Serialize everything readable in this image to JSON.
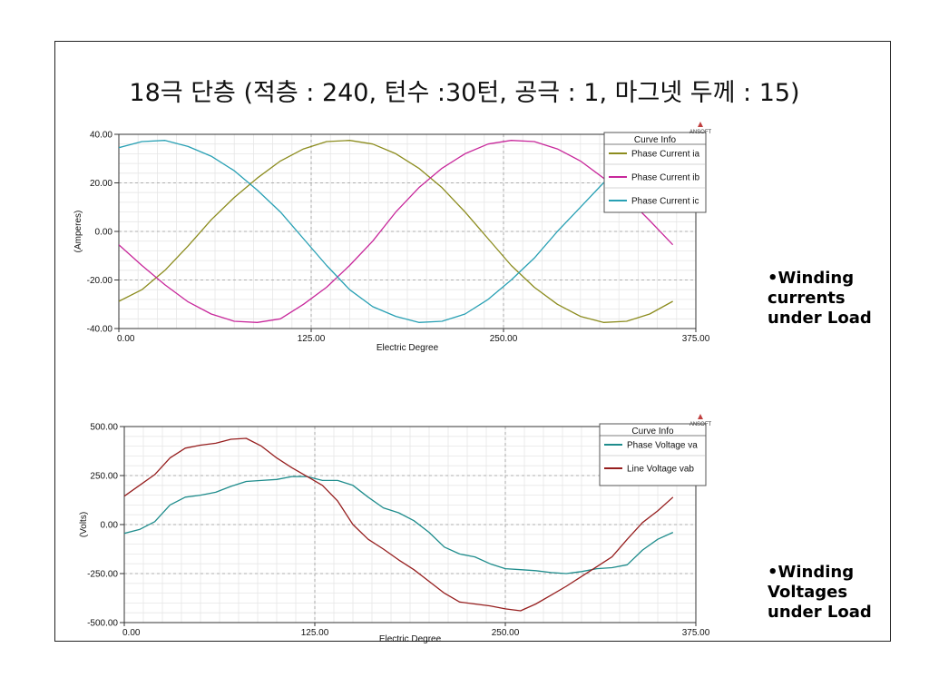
{
  "slide": {
    "title": "18극 단층 (적층 : 240, 턴수 :30턴, 공극 : 1, 마그넷 두께 : 15)",
    "notes": [
      {
        "lines": [
          "•Winding",
          "currents",
          "under Load"
        ]
      },
      {
        "lines": [
          "•Winding",
          "Voltages",
          "under Load"
        ]
      }
    ]
  },
  "chart_data": [
    {
      "type": "line",
      "brand": "ANSOFT",
      "legend_title": "Curve Info",
      "legend_position": "top-right",
      "xlabel": "Electric Degree",
      "ylabel": "(Amperes)",
      "xlim": [
        0,
        375
      ],
      "ylim": [
        -40,
        40
      ],
      "xticks": [
        "0.00",
        "125.00",
        "250.00",
        "375.00"
      ],
      "yticks": [
        "40.00",
        "20.00",
        "0.00",
        "-20.00",
        "-40.00"
      ],
      "grid": true,
      "series": [
        {
          "name": "Phase Current ia",
          "color": "#8c8c1e",
          "x": [
            0,
            15,
            30,
            45,
            60,
            75,
            90,
            105,
            120,
            135,
            150,
            165,
            180,
            195,
            210,
            225,
            240,
            255,
            270,
            285,
            300,
            315,
            330,
            345,
            360
          ],
          "y": [
            -28.8,
            -24,
            -16,
            -6,
            4.8,
            14,
            22,
            29,
            34,
            37,
            37.5,
            36,
            32,
            26,
            18,
            8,
            -3,
            -14,
            -23,
            -30,
            -35,
            -37.5,
            -37,
            -34,
            -28.8
          ]
        },
        {
          "name": "Phase Current ib",
          "color": "#c8289b",
          "x": [
            0,
            15,
            30,
            45,
            60,
            75,
            90,
            105,
            120,
            135,
            150,
            165,
            180,
            195,
            210,
            225,
            240,
            255,
            270,
            285,
            300,
            315,
            330,
            345,
            360
          ],
          "y": [
            -5.5,
            -14,
            -22,
            -29,
            -34,
            -37,
            -37.5,
            -36,
            -30,
            -23,
            -14,
            -4,
            8,
            18,
            26,
            32,
            36,
            37.5,
            37,
            34,
            29,
            22,
            14,
            4.5,
            -5.5
          ]
        },
        {
          "name": "Phase Current ic",
          "color": "#28a0b4",
          "x": [
            0,
            15,
            30,
            45,
            60,
            75,
            90,
            105,
            120,
            135,
            150,
            165,
            180,
            195,
            210,
            225,
            240,
            255,
            270,
            285,
            300,
            315,
            330,
            345,
            360
          ],
          "y": [
            34.5,
            37,
            37.5,
            35,
            31,
            25,
            17,
            8,
            -3,
            -14,
            -24,
            -31,
            -35,
            -37.5,
            -37,
            -34,
            -28,
            -20,
            -11,
            0,
            10,
            20,
            28,
            33,
            34.5
          ]
        }
      ]
    },
    {
      "type": "line",
      "brand": "ANSOFT",
      "legend_title": "Curve Info",
      "legend_position": "top-right",
      "xlabel": "Electric Degree",
      "ylabel": "(Volts)",
      "xlim": [
        0,
        375
      ],
      "ylim": [
        -500,
        500
      ],
      "xticks": [
        "0.00",
        "125.00",
        "250.00",
        "375.00"
      ],
      "yticks": [
        "500.00",
        "250.00",
        "0.00",
        "-250.00",
        "-500.00"
      ],
      "grid": true,
      "series": [
        {
          "name": "Phase Voltage va",
          "color": "#1e8c8c",
          "x": [
            0,
            10,
            20,
            30,
            40,
            50,
            60,
            70,
            80,
            90,
            100,
            110,
            120,
            130,
            140,
            150,
            160,
            170,
            180,
            190,
            200,
            210,
            220,
            230,
            240,
            250,
            260,
            270,
            280,
            290,
            300,
            310,
            320,
            330,
            340,
            350,
            360
          ],
          "y": [
            -45,
            -25,
            15,
            100,
            140,
            150,
            165,
            195,
            220,
            225,
            230,
            245,
            245,
            225,
            225,
            200,
            140,
            85,
            60,
            20,
            -40,
            -115,
            -150,
            -165,
            -200,
            -225,
            -230,
            -235,
            -245,
            -250,
            -240,
            -225,
            -220,
            -205,
            -130,
            -75,
            -40
          ]
        },
        {
          "name": "Line Voltage vab",
          "color": "#961e1e",
          "x": [
            0,
            10,
            20,
            30,
            40,
            50,
            60,
            70,
            80,
            90,
            100,
            110,
            120,
            130,
            140,
            150,
            160,
            170,
            180,
            190,
            200,
            210,
            220,
            230,
            240,
            250,
            260,
            270,
            280,
            290,
            300,
            310,
            320,
            330,
            340,
            350,
            360
          ],
          "y": [
            145,
            200,
            255,
            340,
            390,
            405,
            415,
            435,
            440,
            400,
            340,
            290,
            245,
            200,
            120,
            0,
            -75,
            -125,
            -180,
            -230,
            -290,
            -350,
            -395,
            -405,
            -415,
            -430,
            -440,
            -405,
            -360,
            -315,
            -265,
            -215,
            -165,
            -75,
            10,
            70,
            140
          ]
        }
      ]
    }
  ]
}
